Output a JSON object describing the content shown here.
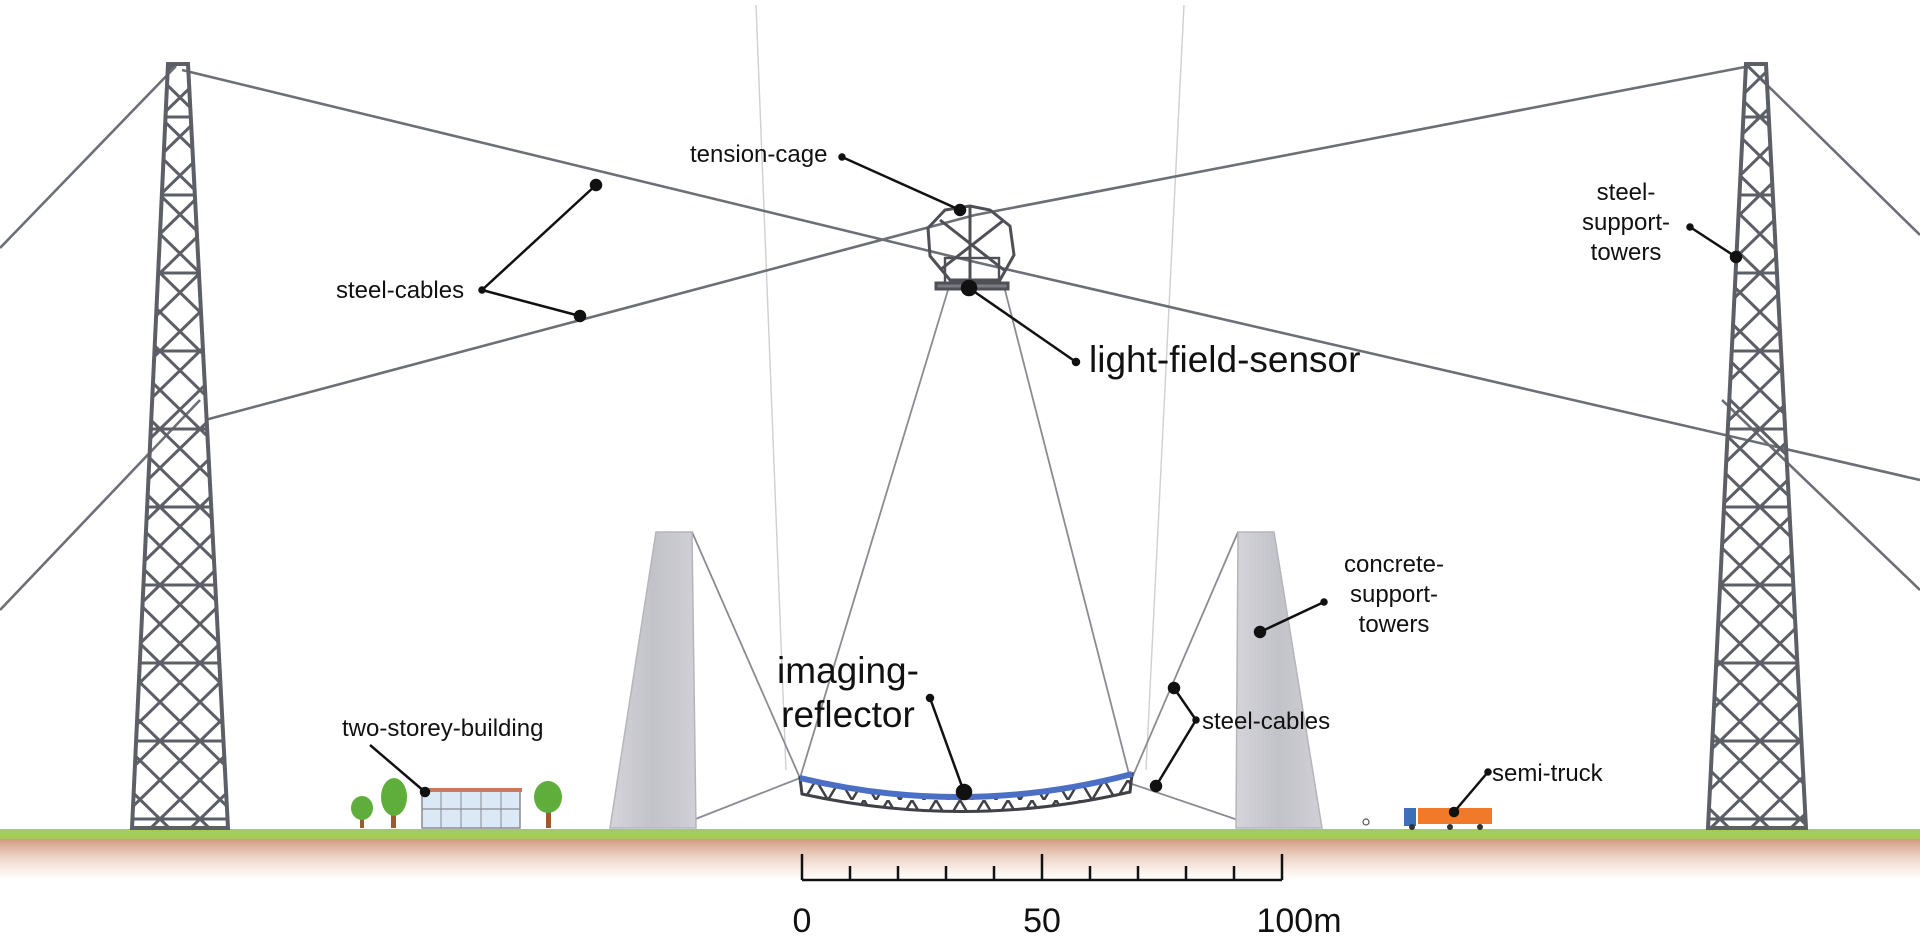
{
  "labels": {
    "tension_cage": "tension-cage",
    "steel_cables_left": "steel-cables",
    "light_field_sensor": "light-field-sensor",
    "steel_support_towers": [
      "steel-",
      "support-",
      "towers"
    ],
    "concrete_support_towers": [
      "concrete-",
      "support-",
      "towers"
    ],
    "imaging_reflector": [
      "imaging-",
      "reflector"
    ],
    "steel_cables_right": "steel-cables",
    "two_storey_building": "two-storey-building",
    "semi_truck": "semi-truck"
  },
  "scale_bar": {
    "ticks": [
      "0",
      "50",
      "100m"
    ],
    "minor_divisions": 10
  },
  "colors": {
    "steel": "#5d5f66",
    "concrete": "#c9c9cf",
    "reflector": "#4a6fc4",
    "grass": "#a4cc5a",
    "soil": "#c98a6a",
    "truck_cab": "#3b6fb8",
    "truck_trailer": "#f07a2a",
    "tree": "#5fae3c"
  }
}
